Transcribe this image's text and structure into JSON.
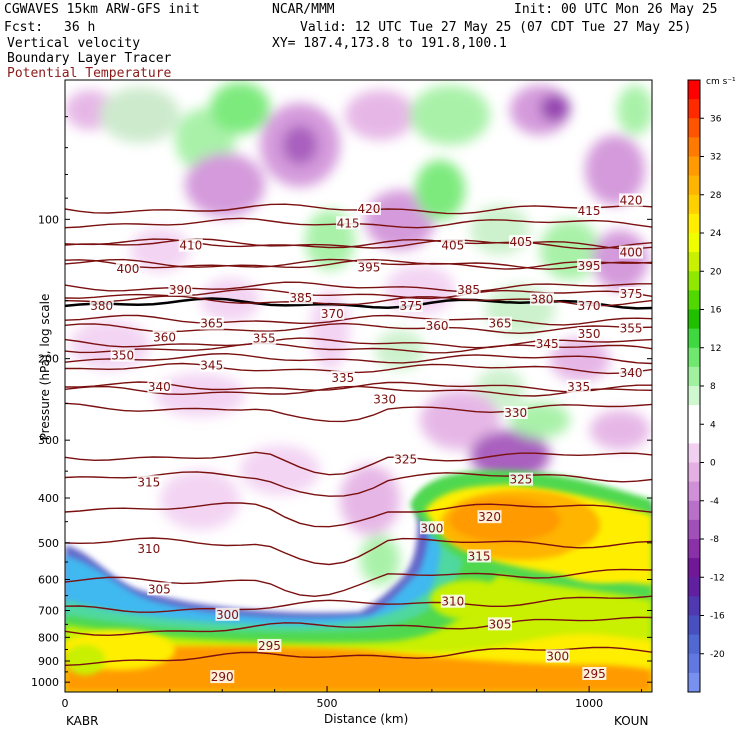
{
  "header": {
    "model": "CGWAVES 15km ARW-GFS init",
    "org": "NCAR/MMM",
    "init": "Init: 00 UTC Mon 26 May 25",
    "fcst_label": "Fcst:",
    "fcst_value": "36 h",
    "valid": "Valid: 12 UTC Tue 27 May 25 (07 CDT Tue 27 May 25)",
    "field1": "Vertical velocity",
    "field2": "Boundary Layer Tracer",
    "field3": "Potential Temperature",
    "xy": "XY= 187.4,173.8 to 191.8,100.1",
    "field3_color": "#8b1a1a"
  },
  "axes": {
    "ylabel": "Pressure (hPa), log scale",
    "xlabel": "Distance (km)",
    "left_station": "KABR",
    "right_station": "KOUN"
  },
  "chart_data": {
    "type": "heatmap",
    "title": "",
    "xlabel": "Distance (km)",
    "ylabel": "Pressure (hPa), log scale",
    "x_ticks": [
      0,
      500,
      1000
    ],
    "xlim": [
      0,
      1120
    ],
    "y_scale": "log",
    "y_ticks": [
      100,
      200,
      300,
      400,
      500,
      600,
      700,
      800,
      900,
      1000
    ],
    "ylim": [
      1050,
      50
    ],
    "colorbar": {
      "unit": "cm s⁻¹",
      "ticks": [
        36,
        32,
        28,
        24,
        20,
        16,
        12,
        8,
        4,
        0,
        -4,
        -8,
        -12,
        -16,
        -20
      ],
      "colors": [
        "#ff0000",
        "#ff2a00",
        "#ff5500",
        "#ff7a00",
        "#ff9a00",
        "#ffb400",
        "#ffd000",
        "#ffee00",
        "#f0ff00",
        "#c8f000",
        "#90e800",
        "#50d800",
        "#20c000",
        "#40d840",
        "#70e870",
        "#a0f0a0",
        "#d0f8d0",
        "#ffffff",
        "#ffffff",
        "#f2d0f2",
        "#e4b0e4",
        "#d090d8",
        "#b870c8",
        "#a050b8",
        "#8a30a8",
        "#701898",
        "#6020a0",
        "#5038b0",
        "#4850c0",
        "#5068d0",
        "#6078e0",
        "#7890f0"
      ]
    },
    "theta_contours": [
      {
        "label": "420",
        "p": 95
      },
      {
        "label": "415",
        "p": 102
      },
      {
        "label": "410",
        "p": 113
      },
      {
        "label": "405",
        "p": 113
      },
      {
        "label": "400",
        "p": 125
      },
      {
        "label": "395",
        "p": 125
      },
      {
        "label": "390",
        "p": 140
      },
      {
        "label": "385",
        "p": 145
      },
      {
        "label": "380",
        "p": 152
      },
      {
        "label": "375",
        "p": 150
      },
      {
        "label": "370",
        "p": 165
      },
      {
        "label": "365",
        "p": 172
      },
      {
        "label": "360",
        "p": 185
      },
      {
        "label": "355",
        "p": 190
      },
      {
        "label": "350",
        "p": 200
      },
      {
        "label": "345",
        "p": 210
      },
      {
        "label": "340",
        "p": 230
      },
      {
        "label": "335",
        "p": 235
      },
      {
        "label": "330",
        "p": 255
      },
      {
        "label": "325",
        "p": 325
      },
      {
        "label": "320",
        "p": 420
      },
      {
        "label": "315",
        "p": 360
      },
      {
        "label": "310",
        "p": 500
      },
      {
        "label": "305",
        "p": 610
      },
      {
        "label": "300",
        "p": 700
      },
      {
        "label": "295",
        "p": 780
      },
      {
        "label": "290",
        "p": 900
      }
    ],
    "contour_labels": [
      {
        "text": "415",
        "x": 540,
        "p": 102
      },
      {
        "text": "420",
        "x": 580,
        "p": 95
      },
      {
        "text": "415",
        "x": 1000,
        "p": 96
      },
      {
        "text": "420",
        "x": 1080,
        "p": 91
      },
      {
        "text": "410",
        "x": 240,
        "p": 114
      },
      {
        "text": "405",
        "x": 740,
        "p": 114
      },
      {
        "text": "405",
        "x": 870,
        "p": 112
      },
      {
        "text": "400",
        "x": 120,
        "p": 128
      },
      {
        "text": "400",
        "x": 1080,
        "p": 118
      },
      {
        "text": "395",
        "x": 580,
        "p": 127
      },
      {
        "text": "395",
        "x": 1000,
        "p": 126
      },
      {
        "text": "390",
        "x": 220,
        "p": 142
      },
      {
        "text": "385",
        "x": 450,
        "p": 148
      },
      {
        "text": "385",
        "x": 770,
        "p": 142
      },
      {
        "text": "380",
        "x": 910,
        "p": 149
      },
      {
        "text": "375",
        "x": 1080,
        "p": 145
      },
      {
        "text": "370",
        "x": 1000,
        "p": 154
      },
      {
        "text": "380",
        "x": 70,
        "p": 154
      },
      {
        "text": "375",
        "x": 660,
        "p": 154
      },
      {
        "text": "370",
        "x": 510,
        "p": 160
      },
      {
        "text": "365",
        "x": 280,
        "p": 168
      },
      {
        "text": "365",
        "x": 830,
        "p": 168
      },
      {
        "text": "360",
        "x": 190,
        "p": 180
      },
      {
        "text": "360",
        "x": 710,
        "p": 170
      },
      {
        "text": "355",
        "x": 380,
        "p": 181
      },
      {
        "text": "355",
        "x": 1080,
        "p": 172
      },
      {
        "text": "350",
        "x": 1000,
        "p": 177
      },
      {
        "text": "350",
        "x": 110,
        "p": 197
      },
      {
        "text": "345",
        "x": 920,
        "p": 186
      },
      {
        "text": "345",
        "x": 280,
        "p": 207
      },
      {
        "text": "340",
        "x": 180,
        "p": 230
      },
      {
        "text": "340",
        "x": 1080,
        "p": 215
      },
      {
        "text": "335",
        "x": 530,
        "p": 220
      },
      {
        "text": "335",
        "x": 980,
        "p": 230
      },
      {
        "text": "330",
        "x": 610,
        "p": 245
      },
      {
        "text": "330",
        "x": 860,
        "p": 262
      },
      {
        "text": "325",
        "x": 650,
        "p": 330
      },
      {
        "text": "325",
        "x": 870,
        "p": 365
      },
      {
        "text": "320",
        "x": 810,
        "p": 440
      },
      {
        "text": "315",
        "x": 160,
        "p": 370
      },
      {
        "text": "315",
        "x": 790,
        "p": 535
      },
      {
        "text": "310",
        "x": 160,
        "p": 515
      },
      {
        "text": "310",
        "x": 740,
        "p": 670
      },
      {
        "text": "305",
        "x": 180,
        "p": 630
      },
      {
        "text": "305",
        "x": 830,
        "p": 750
      },
      {
        "text": "300",
        "x": 310,
        "p": 715
      },
      {
        "text": "300",
        "x": 700,
        "p": 465
      },
      {
        "text": "300",
        "x": 940,
        "p": 880
      },
      {
        "text": "295",
        "x": 390,
        "p": 835
      },
      {
        "text": "295",
        "x": 1010,
        "p": 960
      },
      {
        "text": "290",
        "x": 300,
        "p": 975
      }
    ]
  }
}
